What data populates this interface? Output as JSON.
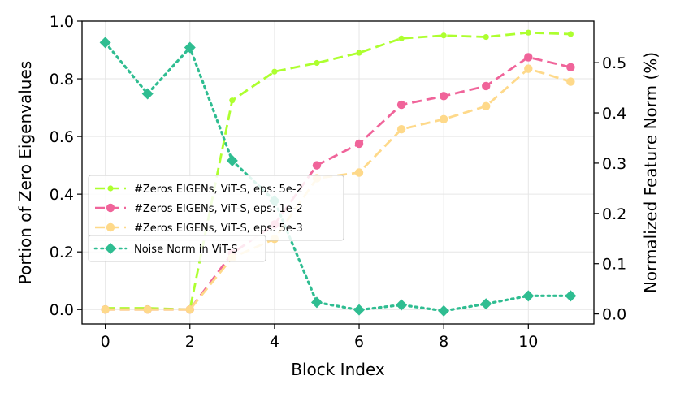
{
  "chart_data": {
    "type": "line",
    "xlabel": "Block Index",
    "ylabel": "Portion of Zero Eigenvalues",
    "y2label": "Normalized Feature Norm (%)",
    "xlim": [
      -0.55,
      11.55
    ],
    "ylim": [
      -0.05,
      1.0
    ],
    "y2lim": [
      -0.02,
      0.5826
    ],
    "x_ticks": [
      0,
      2,
      4,
      6,
      8,
      10
    ],
    "y_ticks": [
      0.0,
      0.2,
      0.4,
      0.6,
      0.8,
      1.0
    ],
    "y2_ticks": [
      0.0,
      0.1,
      0.2,
      0.3,
      0.4,
      0.5
    ],
    "grid": true,
    "legend_position": "center-left",
    "x": [
      0,
      1,
      2,
      3,
      4,
      5,
      6,
      7,
      8,
      9,
      10,
      11
    ],
    "series": [
      {
        "name": "#Zeros EIGENs, ViT-S, eps: 5e-2",
        "axis": "left",
        "color": "#adff2f",
        "linestyle": "dashed",
        "marker": "point",
        "values": [
          0.005,
          0.005,
          0.0,
          0.725,
          0.825,
          0.855,
          0.89,
          0.94,
          0.95,
          0.945,
          0.96,
          0.955
        ]
      },
      {
        "name": "#Zeros EIGENs, ViT-S, eps: 1e-2",
        "axis": "left",
        "color": "#f0649a",
        "linestyle": "dashed",
        "marker": "circle",
        "values": [
          0.0,
          0.0,
          0.0,
          0.195,
          0.295,
          0.5,
          0.575,
          0.71,
          0.74,
          0.775,
          0.875,
          0.84
        ]
      },
      {
        "name": "#Zeros EIGENs, ViT-S, eps: 5e-3",
        "axis": "left",
        "color": "#fed98a",
        "linestyle": "dashed",
        "marker": "circle",
        "values": [
          0.0,
          0.0,
          0.0,
          0.18,
          0.245,
          0.455,
          0.475,
          0.625,
          0.66,
          0.705,
          0.835,
          0.79
        ]
      },
      {
        "name": "Noise Norm in ViT-S",
        "axis": "right",
        "color": "#2fbd91",
        "linestyle": "dotted",
        "marker": "diamond",
        "values": [
          0.54,
          0.438,
          0.53,
          0.305,
          0.225,
          0.023,
          0.008,
          0.018,
          0.006,
          0.02,
          0.036,
          0.036
        ]
      }
    ]
  }
}
